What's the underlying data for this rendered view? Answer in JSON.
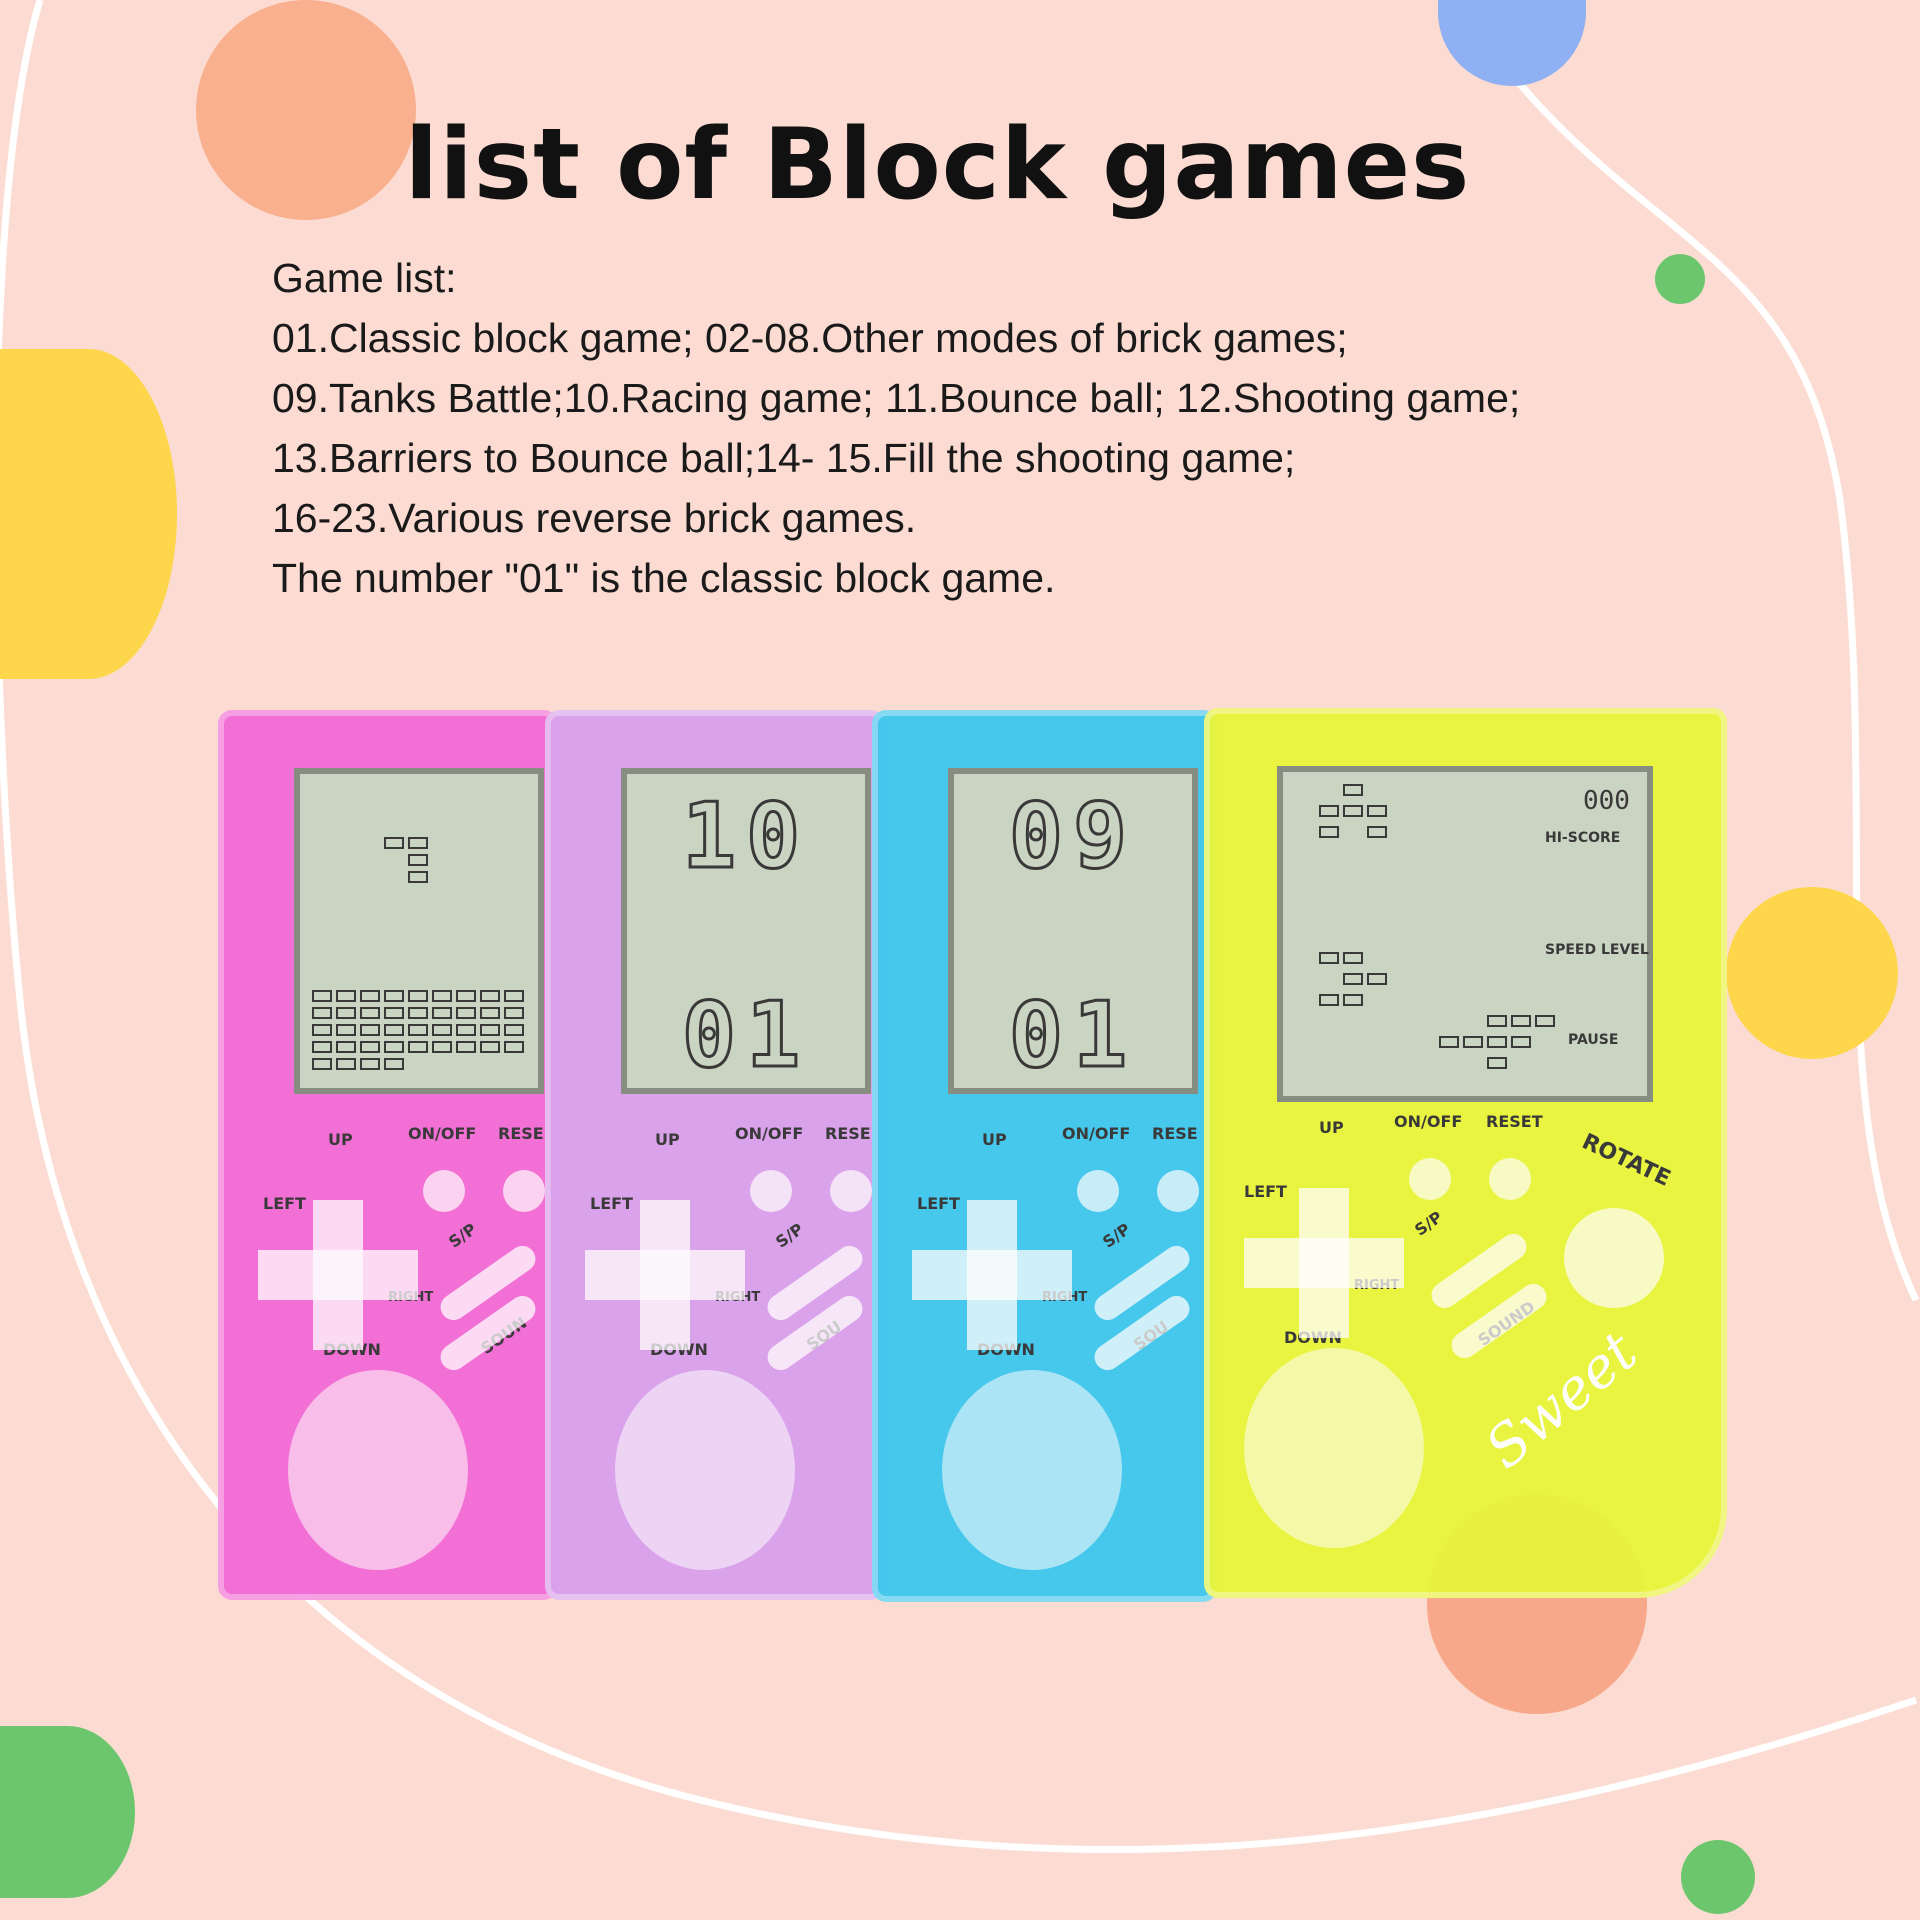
{
  "title": "list of Block games",
  "game_list": [
    "Game list:",
    "01.Classic block game; 02-08.Other modes of brick games;",
    "09.Tanks Battle;10.Racing game; 11.Bounce ball; 12.Shooting game;",
    "13.Barriers to Bounce ball;14- 15.Fill the shooting game;",
    "16-23.Various reverse brick games.",
    "The number \"01\" is the classic block game."
  ],
  "colors": {
    "background": "#fcdcd2",
    "pink_device": "#f26bd6",
    "purple_device": "#d9a0ec",
    "blue_device": "#3fc7ee",
    "yellow_device": "#e8f53a"
  },
  "devices": [
    {
      "name": "pink",
      "color": "#f26bd6",
      "screen_digits": [],
      "labels": {
        "up": "UP",
        "onoff": "ON/OFF",
        "reset": "RESE",
        "left": "LEFT",
        "sp": "S/P",
        "right": "RIGHT",
        "down": "DOWN",
        "sound": "SOUN"
      }
    },
    {
      "name": "purple",
      "color": "#d9a0ec",
      "screen_digits": [
        "10",
        "01"
      ],
      "labels": {
        "up": "UP",
        "onoff": "ON/OFF",
        "reset": "RESE",
        "left": "LEFT",
        "sp": "S/P",
        "right": "RIGHT",
        "down": "DOWN",
        "sound": "SOU"
      }
    },
    {
      "name": "blue",
      "color": "#3fc7ee",
      "screen_digits": [
        "09",
        "01"
      ],
      "labels": {
        "up": "UP",
        "onoff": "ON/OFF",
        "reset": "RESE",
        "left": "LEFT",
        "sp": "S/P",
        "right": "RIGHT",
        "down": "DOWN",
        "sound": "SOU"
      }
    },
    {
      "name": "yellow",
      "color": "#e8f53a",
      "screen_digits": [],
      "labels": {
        "up": "UP",
        "onoff": "ON/OFF",
        "reset": "RESET",
        "left": "LEFT",
        "sp": "S/P",
        "right": "RIGHT",
        "down": "DOWN",
        "sound": "SOUND",
        "rotate": "ROTATE"
      },
      "side_panel": {
        "score": "000",
        "hi_score": "HI-SCORE",
        "speed_level": "SPEED LEVEL",
        "pause": "PAUSE"
      },
      "decor_text": "Sweet"
    }
  ]
}
